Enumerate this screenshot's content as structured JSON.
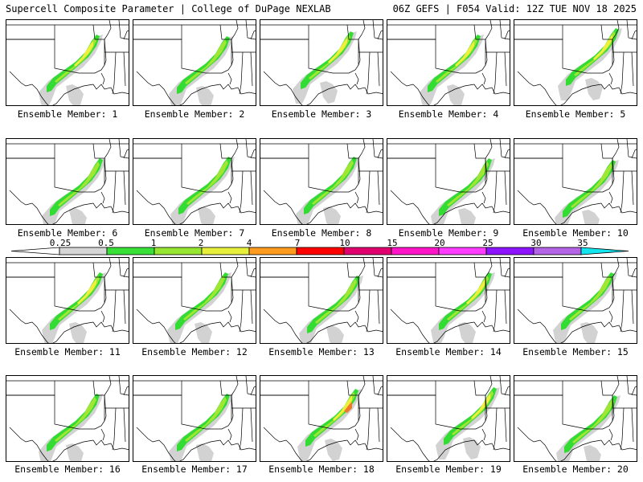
{
  "header": {
    "left_title": "Supercell Composite Parameter | College of DuPage NEXLAB",
    "right_title": "06Z GEFS | F054 Valid: 12Z TUE NOV 18 2025"
  },
  "colorbar": {
    "labels": [
      "0.25",
      "0.5",
      "1",
      "2",
      "4",
      "7",
      "10",
      "15",
      "20",
      "25",
      "30",
      "35"
    ],
    "colors": [
      "#d6d6d6",
      "#38e038",
      "#96e632",
      "#e6f03c",
      "#ff9b1e",
      "#ff0000",
      "#e0006e",
      "#ff14c8",
      "#ff3cff",
      "#8c14ff",
      "#b464e6",
      "#14e6f0"
    ]
  },
  "colors": {
    "gray": "#d2d2d2",
    "green": "#32dc32",
    "lightgreen": "#a0e632",
    "yellow": "#f0f03c",
    "orange": "#f07828"
  },
  "members": [
    {
      "label": "Ensemble Member: 1",
      "max": 3
    },
    {
      "label": "Ensemble Member: 2",
      "max": 2
    },
    {
      "label": "Ensemble Member: 3",
      "max": 3
    },
    {
      "label": "Ensemble Member: 4",
      "max": 3
    },
    {
      "label": "Ensemble Member: 5",
      "max": 3
    },
    {
      "label": "Ensemble Member: 6",
      "max": 2
    },
    {
      "label": "Ensemble Member: 7",
      "max": 2
    },
    {
      "label": "Ensemble Member: 8",
      "max": 2
    },
    {
      "label": "Ensemble Member: 9",
      "max": 2
    },
    {
      "label": "Ensemble Member: 10",
      "max": 2
    },
    {
      "label": "Ensemble Member: 11",
      "max": 3
    },
    {
      "label": "Ensemble Member: 12",
      "max": 2
    },
    {
      "label": "Ensemble Member: 13",
      "max": 2
    },
    {
      "label": "Ensemble Member: 14",
      "max": 3
    },
    {
      "label": "Ensemble Member: 15",
      "max": 2
    },
    {
      "label": "Ensemble Member: 16",
      "max": 2
    },
    {
      "label": "Ensemble Member: 17",
      "max": 2
    },
    {
      "label": "Ensemble Member: 18",
      "max": 4
    },
    {
      "label": "Ensemble Member: 19",
      "max": 3
    },
    {
      "label": "Ensemble Member: 20",
      "max": 2
    }
  ]
}
